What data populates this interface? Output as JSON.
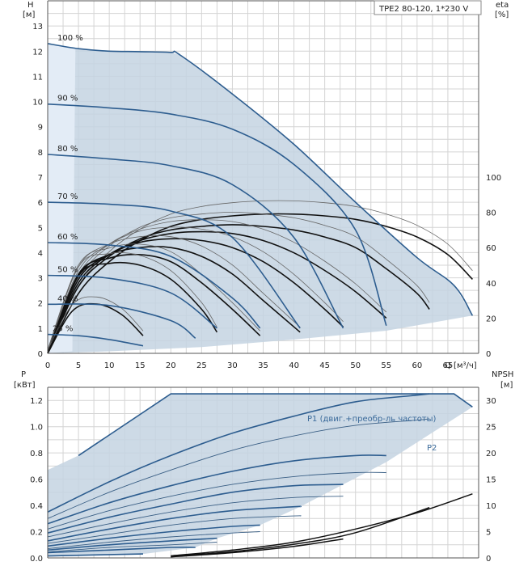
{
  "pump_model": "TPE2 80-120, 1*230 V",
  "chart_data": [
    {
      "type": "line",
      "ylabel": "H",
      "yunit": "[м]",
      "y2label": "eta",
      "y2unit": "[%]",
      "xlabel": "Q [м³/ч]",
      "xlim": [
        0,
        70
      ],
      "ylim": [
        0,
        14
      ],
      "y2lim": [
        0,
        200
      ],
      "xticks": [
        0,
        5,
        10,
        15,
        20,
        25,
        30,
        35,
        40,
        45,
        50,
        55,
        60,
        65
      ],
      "yticks": [
        0,
        1,
        2,
        3,
        4,
        5,
        6,
        7,
        8,
        9,
        10,
        11,
        12,
        13
      ],
      "y2ticks": [
        0,
        20,
        40,
        60,
        80,
        100
      ],
      "grid": true,
      "speed_curves": [
        {
          "label": "100 %",
          "x": [
            0,
            5,
            10,
            15,
            20,
            21.5,
            30,
            40,
            50,
            60,
            66,
            69
          ],
          "y": [
            12.3,
            12.1,
            12.0,
            11.98,
            11.95,
            11.85,
            10.3,
            8.3,
            6.0,
            3.8,
            2.7,
            1.5
          ]
        },
        {
          "label": "90 %",
          "x": [
            0,
            10,
            20,
            30,
            40,
            50,
            55
          ],
          "y": [
            9.9,
            9.75,
            9.5,
            8.9,
            7.5,
            4.9,
            1.1
          ]
        },
        {
          "label": "80 %",
          "x": [
            0,
            10,
            20,
            30,
            40,
            48
          ],
          "y": [
            7.9,
            7.72,
            7.45,
            6.7,
            4.6,
            1.0
          ]
        },
        {
          "label": "70 %",
          "x": [
            0,
            10,
            20,
            30,
            41
          ],
          "y": [
            6.0,
            5.92,
            5.65,
            4.6,
            1.0
          ]
        },
        {
          "label": "60 %",
          "x": [
            0,
            10,
            20,
            30,
            34.5
          ],
          "y": [
            4.4,
            4.3,
            3.85,
            2.2,
            1.0
          ]
        },
        {
          "label": "50 %",
          "x": [
            0,
            10,
            20,
            27.5
          ],
          "y": [
            3.1,
            2.98,
            2.4,
            1.0
          ]
        },
        {
          "label": "40 %",
          "x": [
            0,
            10,
            20,
            24
          ],
          "y": [
            1.95,
            1.9,
            1.3,
            0.6
          ]
        },
        {
          "label": "25 %",
          "x": [
            0,
            5,
            10,
            15.5
          ],
          "y": [
            0.75,
            0.7,
            0.55,
            0.3
          ]
        }
      ],
      "efficiency_curves": [
        {
          "x": [
            0,
            5,
            10,
            15,
            20,
            25,
            30,
            35,
            40,
            45,
            50,
            55,
            60,
            65,
            69
          ],
          "y": [
            0,
            34,
            52,
            64,
            72,
            76,
            78,
            79,
            79,
            78,
            76,
            72,
            66,
            56,
            42
          ]
        },
        {
          "x": [
            0,
            5,
            10,
            15,
            20,
            25,
            30,
            35,
            40,
            45,
            50,
            55,
            60,
            62
          ],
          "y": [
            0,
            38,
            55,
            65,
            70,
            72,
            73,
            72,
            70,
            66,
            60,
            48,
            34,
            25
          ]
        },
        {
          "x": [
            0,
            5,
            10,
            15,
            20,
            25,
            30,
            35,
            40,
            45,
            50,
            55
          ],
          "y": [
            0,
            40,
            56,
            64,
            68,
            69,
            68,
            64,
            57,
            47,
            35,
            20
          ]
        },
        {
          "x": [
            0,
            5,
            10,
            15,
            20,
            25,
            30,
            35,
            40,
            45,
            48
          ],
          "y": [
            0,
            42,
            56,
            63,
            65,
            64,
            60,
            52,
            40,
            25,
            15
          ]
        },
        {
          "x": [
            0,
            5,
            10,
            15,
            20,
            25,
            30,
            35,
            40,
            41
          ],
          "y": [
            0,
            44,
            56,
            60,
            60,
            55,
            45,
            30,
            15,
            12
          ]
        },
        {
          "x": [
            0,
            5,
            10,
            15,
            20,
            25,
            30,
            34.5
          ],
          "y": [
            0,
            45,
            54,
            56,
            52,
            40,
            25,
            10
          ]
        },
        {
          "x": [
            0,
            5,
            10,
            15,
            20,
            25,
            27.5
          ],
          "y": [
            0,
            44,
            51,
            50,
            42,
            25,
            12
          ]
        },
        {
          "x": [
            0,
            4,
            8,
            12,
            15.5
          ],
          "y": [
            0,
            24,
            28,
            22,
            10
          ]
        }
      ]
    },
    {
      "type": "line",
      "ylabel": "P",
      "yunit": "[кВт]",
      "y2label": "NPSH",
      "y2unit": "[м]",
      "xlim": [
        0,
        70
      ],
      "ylim": [
        0,
        1.3
      ],
      "y2lim": [
        0,
        32.5
      ],
      "yticks": [
        "0.0",
        "0.2",
        "0.4",
        "0.6",
        "0.8",
        "1.0",
        "1.2"
      ],
      "y2ticks": [
        0,
        5,
        10,
        15,
        20,
        25,
        30
      ],
      "grid": true,
      "series_labels": [
        "P1 (двиг.+преобр-ль частоты)",
        "P2"
      ],
      "p1_curves": [
        {
          "x": [
            0,
            10,
            20,
            30,
            40,
            50,
            60,
            62
          ],
          "y": [
            0.35,
            0.58,
            0.78,
            0.95,
            1.08,
            1.19,
            1.24,
            1.25
          ]
        },
        {
          "x": [
            0,
            10,
            20,
            30,
            40,
            50,
            55
          ],
          "y": [
            0.26,
            0.42,
            0.55,
            0.66,
            0.74,
            0.78,
            0.78
          ]
        },
        {
          "x": [
            0,
            10,
            20,
            30,
            40,
            48
          ],
          "y": [
            0.19,
            0.31,
            0.41,
            0.5,
            0.55,
            0.56
          ]
        },
        {
          "x": [
            0,
            10,
            20,
            30,
            40,
            41
          ],
          "y": [
            0.13,
            0.22,
            0.3,
            0.36,
            0.39,
            0.39
          ]
        },
        {
          "x": [
            0,
            10,
            20,
            30,
            34.5
          ],
          "y": [
            0.09,
            0.15,
            0.2,
            0.24,
            0.25
          ]
        },
        {
          "x": [
            0,
            10,
            20,
            27.5
          ],
          "y": [
            0.06,
            0.1,
            0.13,
            0.15
          ]
        },
        {
          "x": [
            0,
            10,
            20,
            24
          ],
          "y": [
            0.04,
            0.06,
            0.08,
            0.08
          ]
        },
        {
          "x": [
            0,
            10,
            15.5
          ],
          "y": [
            0.015,
            0.025,
            0.03
          ]
        }
      ],
      "p2_curves": [
        {
          "x": [
            0,
            10,
            20,
            30,
            40,
            50,
            60,
            62
          ],
          "y": [
            0.3,
            0.5,
            0.67,
            0.82,
            0.93,
            1.01,
            1.05,
            1.06
          ]
        },
        {
          "x": [
            0,
            10,
            20,
            30,
            40,
            50,
            55
          ],
          "y": [
            0.22,
            0.36,
            0.47,
            0.56,
            0.62,
            0.65,
            0.65
          ]
        },
        {
          "x": [
            0,
            10,
            20,
            30,
            40,
            48
          ],
          "y": [
            0.16,
            0.26,
            0.35,
            0.42,
            0.46,
            0.47
          ]
        },
        {
          "x": [
            0,
            10,
            20,
            30,
            40,
            41
          ],
          "y": [
            0.11,
            0.18,
            0.25,
            0.3,
            0.32,
            0.32
          ]
        },
        {
          "x": [
            0,
            10,
            20,
            30,
            34.5
          ],
          "y": [
            0.07,
            0.12,
            0.16,
            0.19,
            0.2
          ]
        },
        {
          "x": [
            0,
            10,
            20,
            27.5
          ],
          "y": [
            0.045,
            0.08,
            0.1,
            0.12
          ]
        }
      ],
      "npsh_curves": [
        {
          "x": [
            20,
            30,
            40,
            50,
            60,
            69
          ],
          "y": [
            0.4,
            1.5,
            3.0,
            5.5,
            8.6,
            12.2
          ]
        },
        {
          "x": [
            20,
            30,
            40,
            50,
            62
          ],
          "y": [
            0.3,
            1.2,
            2.6,
            4.8,
            9.6
          ]
        },
        {
          "x": [
            20,
            30,
            40,
            48
          ],
          "y": [
            0.2,
            1.0,
            2.2,
            3.6
          ]
        }
      ]
    }
  ]
}
